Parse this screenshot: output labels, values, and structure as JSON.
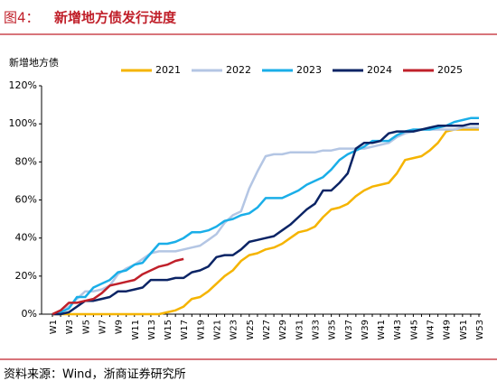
{
  "chart_data": {
    "type": "line",
    "figure_label": "图4：",
    "title": "新增地方债发行进度",
    "ylabel": "新增地方债",
    "source": "资料来源：Wind，浙商证券研究所",
    "categories": [
      "W1",
      null,
      "W3",
      null,
      "W5",
      null,
      "W7",
      null,
      "W9",
      null,
      "W11",
      null,
      "W13",
      null,
      "W15",
      null,
      "W17",
      null,
      "W19",
      null,
      "W21",
      null,
      "W23",
      null,
      "W25",
      null,
      "W27",
      null,
      "W29",
      null,
      "W31",
      null,
      "W33",
      null,
      "W35",
      null,
      "W37",
      null,
      "W39",
      null,
      "W41",
      null,
      "W43",
      null,
      "W45",
      null,
      "W47",
      null,
      "W49",
      null,
      "W51",
      null,
      "W53"
    ],
    "ylim": [
      0,
      120
    ],
    "yticks": [
      {
        "value": 0,
        "label": "0%"
      },
      {
        "value": 20,
        "label": "20%"
      },
      {
        "value": 40,
        "label": "40%"
      },
      {
        "value": 60,
        "label": "60%"
      },
      {
        "value": 80,
        "label": "80%"
      },
      {
        "value": 100,
        "label": "100%"
      },
      {
        "value": 120,
        "label": "120%"
      }
    ],
    "grid": false,
    "legend": "top",
    "series": [
      {
        "name": "2021",
        "color": "#f5b400",
        "values": [
          0,
          0,
          0,
          0,
          0,
          0,
          0,
          0,
          0,
          0,
          0,
          0,
          0,
          0,
          1,
          2,
          4,
          8,
          9,
          12,
          16,
          20,
          23,
          28,
          31,
          32,
          34,
          35,
          37,
          40,
          43,
          44,
          46,
          51,
          55,
          56,
          58,
          62,
          65,
          67,
          68,
          69,
          74,
          81,
          82,
          83,
          86,
          90,
          96,
          97,
          97,
          97,
          97
        ]
      },
      {
        "name": "2022",
        "color": "#b4c6e4",
        "values": [
          0,
          1,
          4,
          8,
          12,
          12,
          13,
          15,
          21,
          24,
          26,
          29,
          32,
          33,
          33,
          33,
          34,
          35,
          36,
          39,
          42,
          48,
          52,
          54,
          66,
          75,
          83,
          84,
          84,
          85,
          85,
          85,
          85,
          86,
          86,
          87,
          87,
          87,
          87,
          88,
          89,
          90,
          93,
          95,
          96,
          97,
          97,
          97,
          97,
          97,
          98,
          98,
          98
        ]
      },
      {
        "name": "2023",
        "color": "#1aaee8",
        "values": [
          0,
          1,
          3,
          9,
          9,
          14,
          16,
          18,
          22,
          23,
          26,
          27,
          32,
          37,
          37,
          38,
          40,
          43,
          43,
          44,
          46,
          49,
          50,
          52,
          53,
          56,
          61,
          61,
          61,
          63,
          65,
          68,
          70,
          72,
          76,
          81,
          84,
          86,
          88,
          91,
          91,
          91,
          94,
          96,
          97,
          97,
          97,
          98,
          99,
          101,
          102,
          103,
          103
        ]
      },
      {
        "name": "2024",
        "color": "#0b2465",
        "values": [
          0,
          0,
          1,
          4,
          7,
          7,
          8,
          9,
          12,
          12,
          13,
          14,
          18,
          18,
          18,
          19,
          19,
          22,
          23,
          25,
          30,
          31,
          31,
          34,
          38,
          39,
          40,
          41,
          44,
          47,
          51,
          55,
          58,
          65,
          65,
          69,
          74,
          87,
          90,
          90,
          91,
          95,
          96,
          96,
          96,
          97,
          98,
          99,
          99,
          99,
          99,
          100,
          100
        ]
      },
      {
        "name": "2025",
        "color": "#c0202a",
        "values": [
          0,
          2,
          6,
          6,
          7,
          8,
          11,
          15,
          16,
          17,
          18,
          21,
          23,
          25,
          26,
          28,
          29,
          null,
          null,
          null,
          null,
          null,
          null,
          null,
          null,
          null,
          null,
          null,
          null,
          null,
          null,
          null,
          null,
          null,
          null,
          null,
          null,
          null,
          null,
          null,
          null,
          null,
          null,
          null,
          null,
          null,
          null,
          null,
          null,
          null,
          null,
          null,
          null
        ]
      }
    ]
  }
}
